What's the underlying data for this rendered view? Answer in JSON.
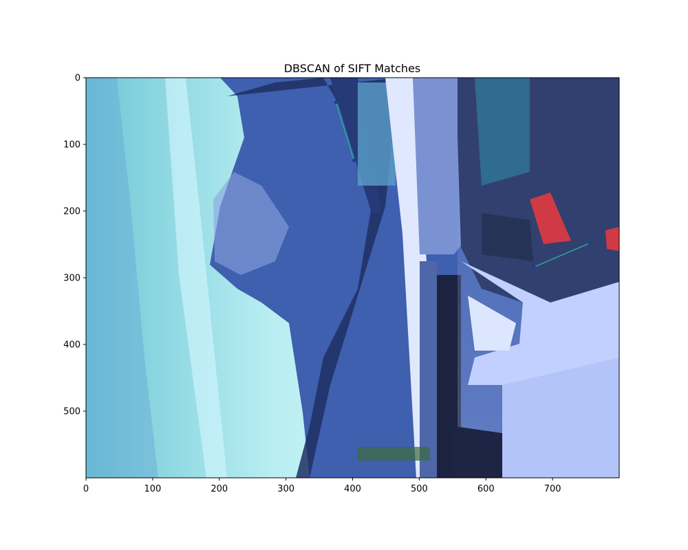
{
  "chart_data": {
    "type": "scatter",
    "title": "DBSCAN of SIFT Matches",
    "xlabel": "",
    "ylabel": "",
    "xlim": [
      0,
      800
    ],
    "ylim": [
      600,
      0
    ],
    "y_axis_inverted": true,
    "grid": false,
    "background": "image (rotated photo of a snowy mountain village with parked cars, blue-tinted)",
    "xticks": [
      "0",
      "100",
      "200",
      "300",
      "400",
      "500",
      "600",
      "700"
    ],
    "yticks": [
      "0",
      "100",
      "200",
      "300",
      "400",
      "500"
    ],
    "xtick_values": [
      0,
      100,
      200,
      300,
      400,
      500,
      600,
      700
    ],
    "ytick_values": [
      0,
      100,
      200,
      300,
      400,
      500
    ],
    "match_lines": [
      {
        "x": [
          375,
          402
        ],
        "y": [
          37,
          124
        ],
        "color": "#2aa89a"
      },
      {
        "x": [
          672,
          756
        ],
        "y": [
          284,
          248
        ],
        "color": "#2aa89a"
      }
    ],
    "points": [
      {
        "x": 375,
        "y": 37
      },
      {
        "x": 402,
        "y": 124
      },
      {
        "x": 672,
        "y": 284
      },
      {
        "x": 756,
        "y": 248
      }
    ],
    "point_color": "#1f3c8f"
  }
}
